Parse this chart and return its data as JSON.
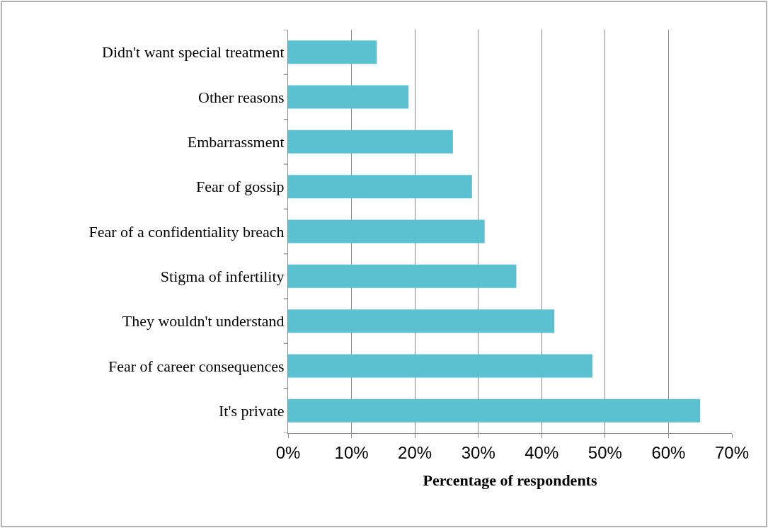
{
  "chart_data": {
    "type": "bar",
    "orientation": "horizontal",
    "xlabel": "Percentage of respondents",
    "categories": [
      "Didn't want special treatment",
      "Other reasons",
      "Embarrassment",
      "Fear of gossip",
      "Fear of a confidentiality breach",
      "Stigma of infertility",
      "They wouldn't understand",
      "Fear of career consequences",
      "It's private"
    ],
    "values": [
      14,
      19,
      26,
      29,
      31,
      36,
      42,
      48,
      65
    ],
    "color": "#5bc0cf",
    "xlim": [
      0,
      70
    ],
    "xticks": [
      {
        "value": 0,
        "label": "0%"
      },
      {
        "value": 10,
        "label": "10%"
      },
      {
        "value": 20,
        "label": "20%"
      },
      {
        "value": 30,
        "label": "30%"
      },
      {
        "value": 40,
        "label": "40%"
      },
      {
        "value": 50,
        "label": "50%"
      },
      {
        "value": 60,
        "label": "60%"
      },
      {
        "value": 70,
        "label": "70%"
      }
    ],
    "grid": "x"
  }
}
